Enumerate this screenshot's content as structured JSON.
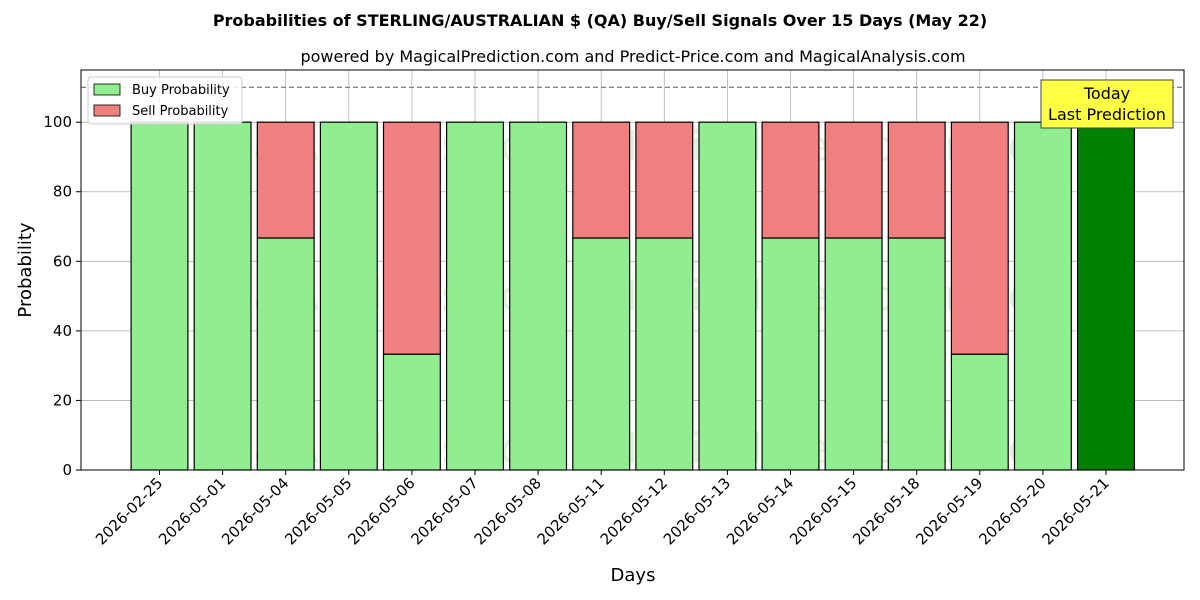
{
  "chart_data": {
    "type": "bar",
    "stacked": true,
    "title": "Probabilities of STERLING/AUSTRALIAN $ (QA) Buy/Sell Signals Over 15 Days (May 22)",
    "subtitle": "powered by MagicalPrediction.com and Predict-Price.com and MagicalAnalysis.com",
    "xlabel": "Days",
    "ylabel": "Probability",
    "ylim": [
      0,
      115
    ],
    "yticks": [
      0,
      20,
      40,
      60,
      80,
      100
    ],
    "grid": true,
    "legend_placement": "top-left",
    "reference_line": 110,
    "categories": [
      "2026-02-25",
      "2026-05-01",
      "2026-05-04",
      "2026-05-05",
      "2026-05-06",
      "2026-05-07",
      "2026-05-08",
      "2026-05-11",
      "2026-05-12",
      "2026-05-13",
      "2026-05-14",
      "2026-05-15",
      "2026-05-18",
      "2026-05-19",
      "2026-05-20",
      "2026-05-21"
    ],
    "series": [
      {
        "name": "Buy Probability",
        "color": "#90ee90",
        "values": [
          100,
          100,
          66.7,
          100,
          33.3,
          100,
          100,
          66.7,
          66.7,
          100,
          66.7,
          66.7,
          66.7,
          33.3,
          100,
          100
        ]
      },
      {
        "name": "Sell Probability",
        "color": "#f08080",
        "values": [
          0,
          0,
          33.3,
          0,
          66.7,
          0,
          0,
          33.3,
          33.3,
          0,
          33.3,
          33.3,
          33.3,
          66.7,
          0,
          0
        ]
      }
    ],
    "highlight": {
      "index": 15,
      "color": "#008000"
    },
    "annotation": {
      "lines": [
        "Today",
        "Last Prediction"
      ],
      "background": "#ffff44"
    },
    "watermarks": [
      "MagicalAnalysis.com",
      "MagicalPrediction.com"
    ]
  }
}
